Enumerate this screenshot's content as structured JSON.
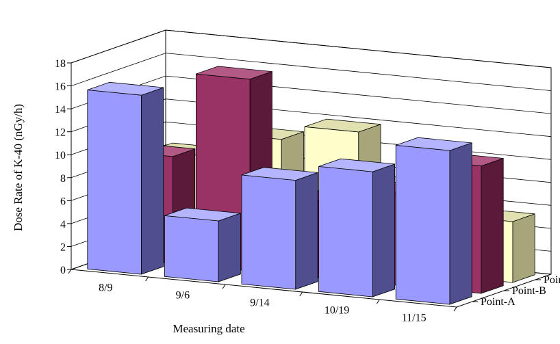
{
  "chart_data": {
    "type": "bar",
    "style": "3d-clustered-depth",
    "xlabel": "Measuring date",
    "ylabel": "Dose Rate of K-40 (nGy/h)",
    "categories": [
      "8/9",
      "9/6",
      "9/14",
      "10/19",
      "11/15"
    ],
    "ylim": [
      0,
      18
    ],
    "yticks": [
      0,
      2,
      4,
      6,
      8,
      10,
      12,
      14,
      16,
      18
    ],
    "grid": true,
    "series": [
      {
        "name": "Point-A",
        "values": [
          15.6,
          5.3,
          9.5,
          10.9,
          13.4
        ],
        "color": "#9999ff",
        "side": "#4f4f8f",
        "top": "#b4b4ff"
      },
      {
        "name": "Point-B",
        "values": [
          9.3,
          16.7,
          6.7,
          8.1,
          11.1
        ],
        "color": "#993366",
        "side": "#5c1a3a",
        "top": "#b25a85"
      },
      {
        "name": "Point-E",
        "values": [
          8.4,
          10.5,
          11.8,
          7.7,
          5.3
        ],
        "color": "#ffffcc",
        "side": "#a6a67a",
        "top": "#e0e0b0"
      }
    ]
  }
}
